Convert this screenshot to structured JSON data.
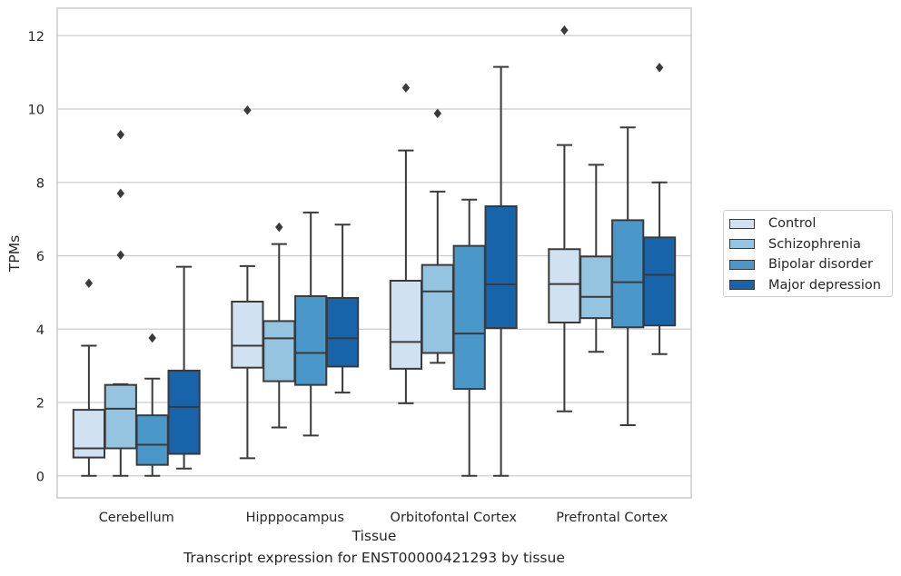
{
  "chart_data": {
    "type": "box",
    "title": "",
    "xlabel": "Tissue",
    "ylabel": "TPMs",
    "ylim": [
      -0.6,
      12.75
    ],
    "yticks": [
      0,
      2,
      4,
      6,
      8,
      10,
      12
    ],
    "grid": "horizontal",
    "legend_placement": "right",
    "categories": [
      "Cerebellum",
      "Hipppocampus",
      "Orbitofontal Cortex",
      "Prefrontal Cortex"
    ],
    "series": [
      {
        "name": "Control",
        "color": "#d0e1f2",
        "boxes": [
          {
            "whislo": 0.0,
            "q1": 0.5,
            "med": 0.75,
            "q3": 1.8,
            "whishi": 3.55,
            "fliers": [
              5.25
            ]
          },
          {
            "whislo": 0.48,
            "q1": 2.95,
            "med": 3.55,
            "q3": 4.75,
            "whishi": 5.72,
            "fliers": [
              9.97
            ]
          },
          {
            "whislo": 1.98,
            "q1": 2.92,
            "med": 3.65,
            "q3": 5.32,
            "whishi": 8.87,
            "fliers": [
              10.58
            ]
          },
          {
            "whislo": 1.76,
            "q1": 4.18,
            "med": 5.23,
            "q3": 6.18,
            "whishi": 9.02,
            "fliers": [
              12.15
            ]
          }
        ]
      },
      {
        "name": "Schizophrenia",
        "color": "#94c4df",
        "boxes": [
          {
            "whislo": 0.0,
            "q1": 0.75,
            "med": 1.83,
            "q3": 2.48,
            "whishi": 2.5,
            "fliers": [
              6.02,
              7.7,
              9.3
            ]
          },
          {
            "whislo": 1.32,
            "q1": 2.58,
            "med": 3.75,
            "q3": 4.22,
            "whishi": 6.32,
            "fliers": [
              6.78
            ]
          },
          {
            "whislo": 3.08,
            "q1": 3.35,
            "med": 5.03,
            "q3": 5.75,
            "whishi": 7.75,
            "fliers": [
              9.88
            ]
          },
          {
            "whislo": 3.38,
            "q1": 4.3,
            "med": 4.88,
            "q3": 5.98,
            "whishi": 8.48,
            "fliers": []
          }
        ]
      },
      {
        "name": "Bipolar disorder",
        "color": "#4a98c9",
        "boxes": [
          {
            "whislo": 0.0,
            "q1": 0.3,
            "med": 0.85,
            "q3": 1.65,
            "whishi": 2.65,
            "fliers": [
              3.76
            ]
          },
          {
            "whislo": 1.1,
            "q1": 2.48,
            "med": 3.35,
            "q3": 4.9,
            "whishi": 7.18,
            "fliers": []
          },
          {
            "whislo": 0.0,
            "q1": 2.37,
            "med": 3.88,
            "q3": 6.27,
            "whishi": 7.53,
            "fliers": []
          },
          {
            "whislo": 1.38,
            "q1": 4.05,
            "med": 5.28,
            "q3": 6.97,
            "whishi": 9.5,
            "fliers": []
          }
        ]
      },
      {
        "name": "Major depression",
        "color": "#1764ab",
        "boxes": [
          {
            "whislo": 0.2,
            "q1": 0.6,
            "med": 1.88,
            "q3": 2.87,
            "whishi": 5.7,
            "fliers": []
          },
          {
            "whislo": 2.27,
            "q1": 2.98,
            "med": 3.75,
            "q3": 4.85,
            "whishi": 6.85,
            "fliers": []
          },
          {
            "whislo": 0.0,
            "q1": 4.03,
            "med": 5.22,
            "q3": 7.35,
            "whishi": 11.15,
            "fliers": []
          },
          {
            "whislo": 3.32,
            "q1": 4.1,
            "med": 5.48,
            "q3": 6.5,
            "whishi": 8.0,
            "fliers": [
              11.13
            ]
          }
        ]
      }
    ]
  },
  "caption": "Transcript expression for ENST00000421293 by tissue"
}
